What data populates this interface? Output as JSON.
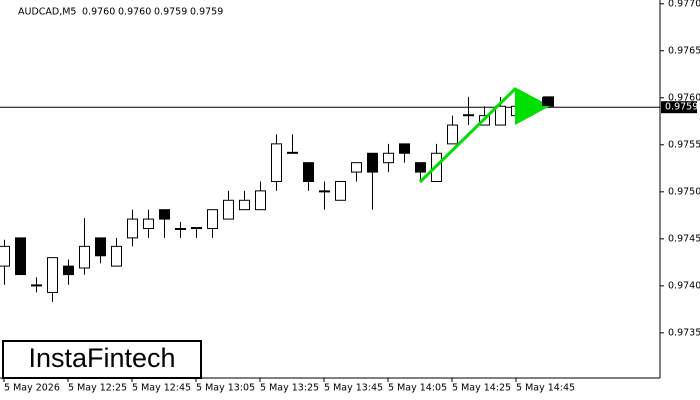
{
  "chart_data": {
    "type": "candlestick",
    "title": "AUDCAD,M5",
    "header_ohlc": [
      {
        "value": 0.976,
        "label": "0.9760"
      },
      {
        "value": 0.976,
        "label": "0.9760"
      },
      {
        "value": 0.9759,
        "label": "0.9759"
      },
      {
        "value": 0.9759,
        "label": "0.9759"
      }
    ],
    "categories": [
      "5 May 2026",
      null,
      null,
      null,
      "5 May 12:25",
      null,
      null,
      null,
      "5 May 12:45",
      null,
      null,
      null,
      "5 May 13:05",
      null,
      null,
      null,
      "5 May 13:25",
      null,
      null,
      null,
      "5 May 13:45",
      null,
      null,
      null,
      "5 May 14:05",
      null,
      null,
      null,
      "5 May 14:25",
      null,
      null,
      null,
      "5 May 14:45",
      null,
      null
    ],
    "open": [
      0.97421,
      0.97451,
      0.97401,
      0.97393,
      0.97421,
      0.97419,
      0.97451,
      0.97421,
      0.97451,
      0.97461,
      0.97481,
      0.97461,
      0.97461,
      0.97461,
      0.97471,
      0.97481,
      0.97481,
      0.97511,
      0.97541,
      0.97531,
      0.97501,
      0.97491,
      0.97521,
      0.97541,
      0.97531,
      0.97551,
      0.97531,
      0.97511,
      0.97551,
      0.97581,
      0.97571,
      0.97571,
      0.97581,
      0.97591,
      0.97601
    ],
    "high": [
      0.97449,
      0.97451,
      0.97409,
      0.9743,
      0.97428,
      0.97472,
      0.97451,
      0.97451,
      0.97481,
      0.97481,
      0.97481,
      0.97468,
      0.97462,
      0.97481,
      0.97501,
      0.97501,
      0.97511,
      0.97561,
      0.97561,
      0.97531,
      0.97511,
      0.97511,
      0.97531,
      0.97541,
      0.97551,
      0.97551,
      0.97531,
      0.97551,
      0.97581,
      0.97601,
      0.97591,
      0.97601,
      0.97606,
      0.97601,
      0.97601
    ],
    "low": [
      0.97401,
      0.97412,
      0.97393,
      0.97383,
      0.97401,
      0.97412,
      0.97424,
      0.97421,
      0.97442,
      0.97451,
      0.97451,
      0.97451,
      0.97451,
      0.97451,
      0.97471,
      0.97481,
      0.97481,
      0.97501,
      0.97541,
      0.97501,
      0.97481,
      0.97491,
      0.97511,
      0.97481,
      0.97521,
      0.97531,
      0.97511,
      0.97511,
      0.97551,
      0.97571,
      0.97571,
      0.97571,
      0.97581,
      0.97581,
      0.97591
    ],
    "close": [
      0.97442,
      0.97412,
      0.974,
      0.9743,
      0.97412,
      0.97442,
      0.97432,
      0.97442,
      0.97471,
      0.97471,
      0.97471,
      0.9746,
      0.97462,
      0.97481,
      0.97491,
      0.97491,
      0.97501,
      0.97551,
      0.97542,
      0.97511,
      0.975,
      0.97511,
      0.97531,
      0.97521,
      0.97541,
      0.97541,
      0.97521,
      0.97541,
      0.97571,
      0.97582,
      0.97581,
      0.97591,
      0.97591,
      0.9759,
      0.97591
    ],
    "current_price": 0.9759,
    "ylim": [
      0.97302,
      0.97704
    ],
    "yticks": [
      {
        "value": 0.9735,
        "label": "0.9735"
      },
      {
        "value": 0.974,
        "label": "0.9740"
      },
      {
        "value": 0.9745,
        "label": "0.9745"
      },
      {
        "value": 0.975,
        "label": "0.9750"
      },
      {
        "value": 0.9755,
        "label": "0.9755"
      },
      {
        "value": 0.976,
        "label": "0.9760"
      },
      {
        "value": 0.9765,
        "label": "0.9765"
      },
      {
        "value": 0.977,
        "label": "0.9770"
      }
    ],
    "pattern_color": "#00e000",
    "logo": "InstaFintech"
  }
}
